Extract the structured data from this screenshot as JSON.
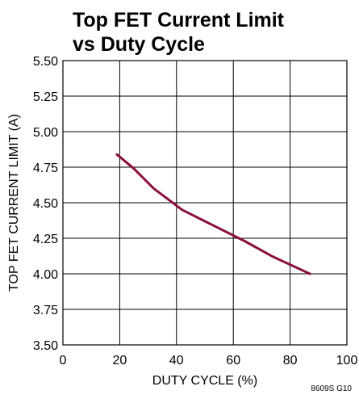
{
  "chart_data": {
    "type": "line",
    "title_lines": [
      "Top FET Current Limit",
      "vs Duty Cycle"
    ],
    "xlabel": "DUTY CYCLE (%)",
    "ylabel": "TOP FET CURRENT LIMIT (A)",
    "xlim": [
      0,
      100
    ],
    "ylim": [
      3.5,
      5.5
    ],
    "x_ticks": [
      0,
      20,
      40,
      60,
      80,
      100
    ],
    "x_tick_labels": [
      "0",
      "20",
      "40",
      "60",
      "80",
      "100"
    ],
    "y_ticks": [
      3.5,
      3.75,
      4.0,
      4.25,
      4.5,
      4.75,
      5.0,
      5.25,
      5.5
    ],
    "y_tick_labels": [
      "3.50",
      "3.75",
      "4.00",
      "4.25",
      "4.50",
      "4.75",
      "5.00",
      "5.25",
      "5.50"
    ],
    "grid": true,
    "series": [
      {
        "color": "#8a0f3c",
        "x": [
          19,
          25,
          32,
          42,
          53,
          64,
          74,
          87
        ],
        "y": [
          4.84,
          4.74,
          4.6,
          4.45,
          4.34,
          4.23,
          4.12,
          4.0
        ]
      }
    ],
    "footnote": "8609S G10"
  }
}
